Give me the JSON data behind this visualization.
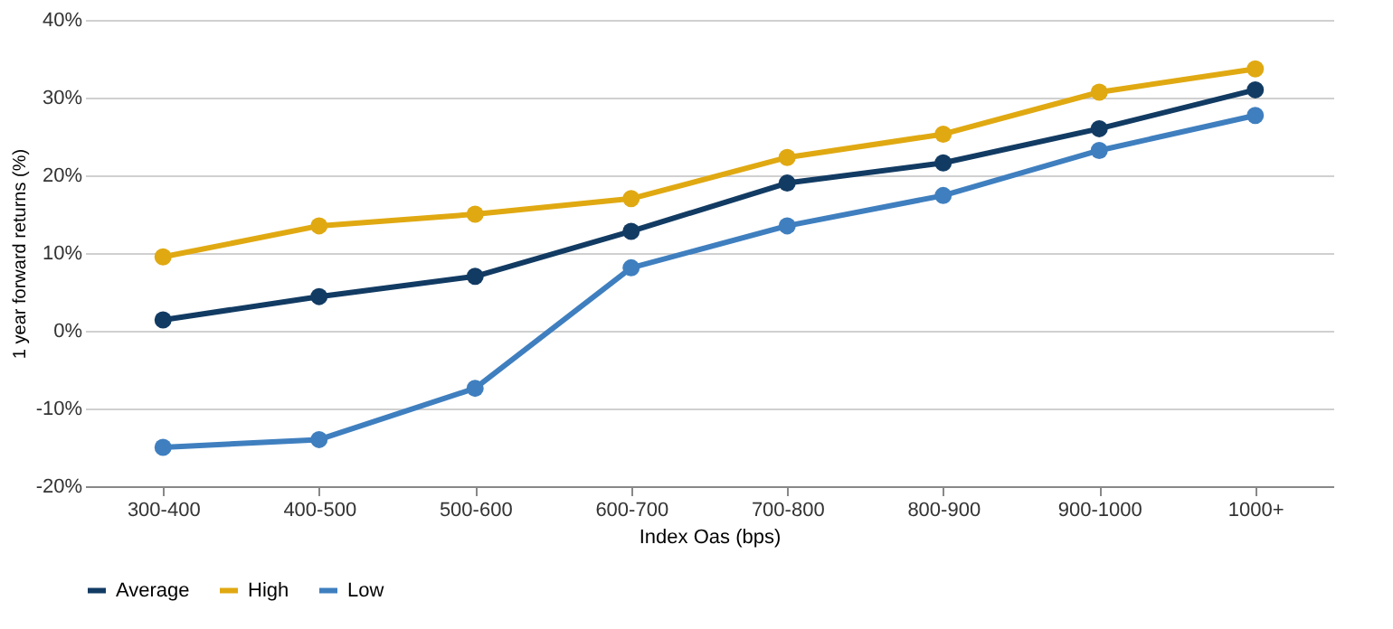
{
  "chart_data": {
    "type": "line",
    "xlabel": "Index Oas (bps)",
    "ylabel": "1 year forward returns (%)",
    "categories": [
      "300-400",
      "400-500",
      "500-600",
      "600-700",
      "700-800",
      "800-900",
      "900-1000",
      "1000+"
    ],
    "series": [
      {
        "name": "Average",
        "color": "#123b63",
        "values": [
          1.4,
          4.4,
          7,
          12.8,
          19,
          21.6,
          26,
          31
        ]
      },
      {
        "name": "High",
        "color": "#e0a912",
        "values": [
          9.5,
          13.5,
          15,
          17,
          22.3,
          25.3,
          30.7,
          33.7
        ]
      },
      {
        "name": "Low",
        "color": "#3f7fbf",
        "values": [
          -15,
          -14,
          -7.4,
          8.1,
          13.5,
          17.4,
          23.2,
          27.7
        ]
      }
    ],
    "ylim": [
      -20,
      40
    ],
    "yticks": [
      {
        "value": -20,
        "label": "-20%"
      },
      {
        "value": -10,
        "label": "-10%"
      },
      {
        "value": 0,
        "label": "0%"
      },
      {
        "value": 10,
        "label": "10%"
      },
      {
        "value": 20,
        "label": "20%"
      },
      {
        "value": 30,
        "label": "30%"
      },
      {
        "value": 40,
        "label": "40%"
      }
    ],
    "grid": "y",
    "legend": "bottom",
    "marker": "circle",
    "line_style": "solid"
  }
}
